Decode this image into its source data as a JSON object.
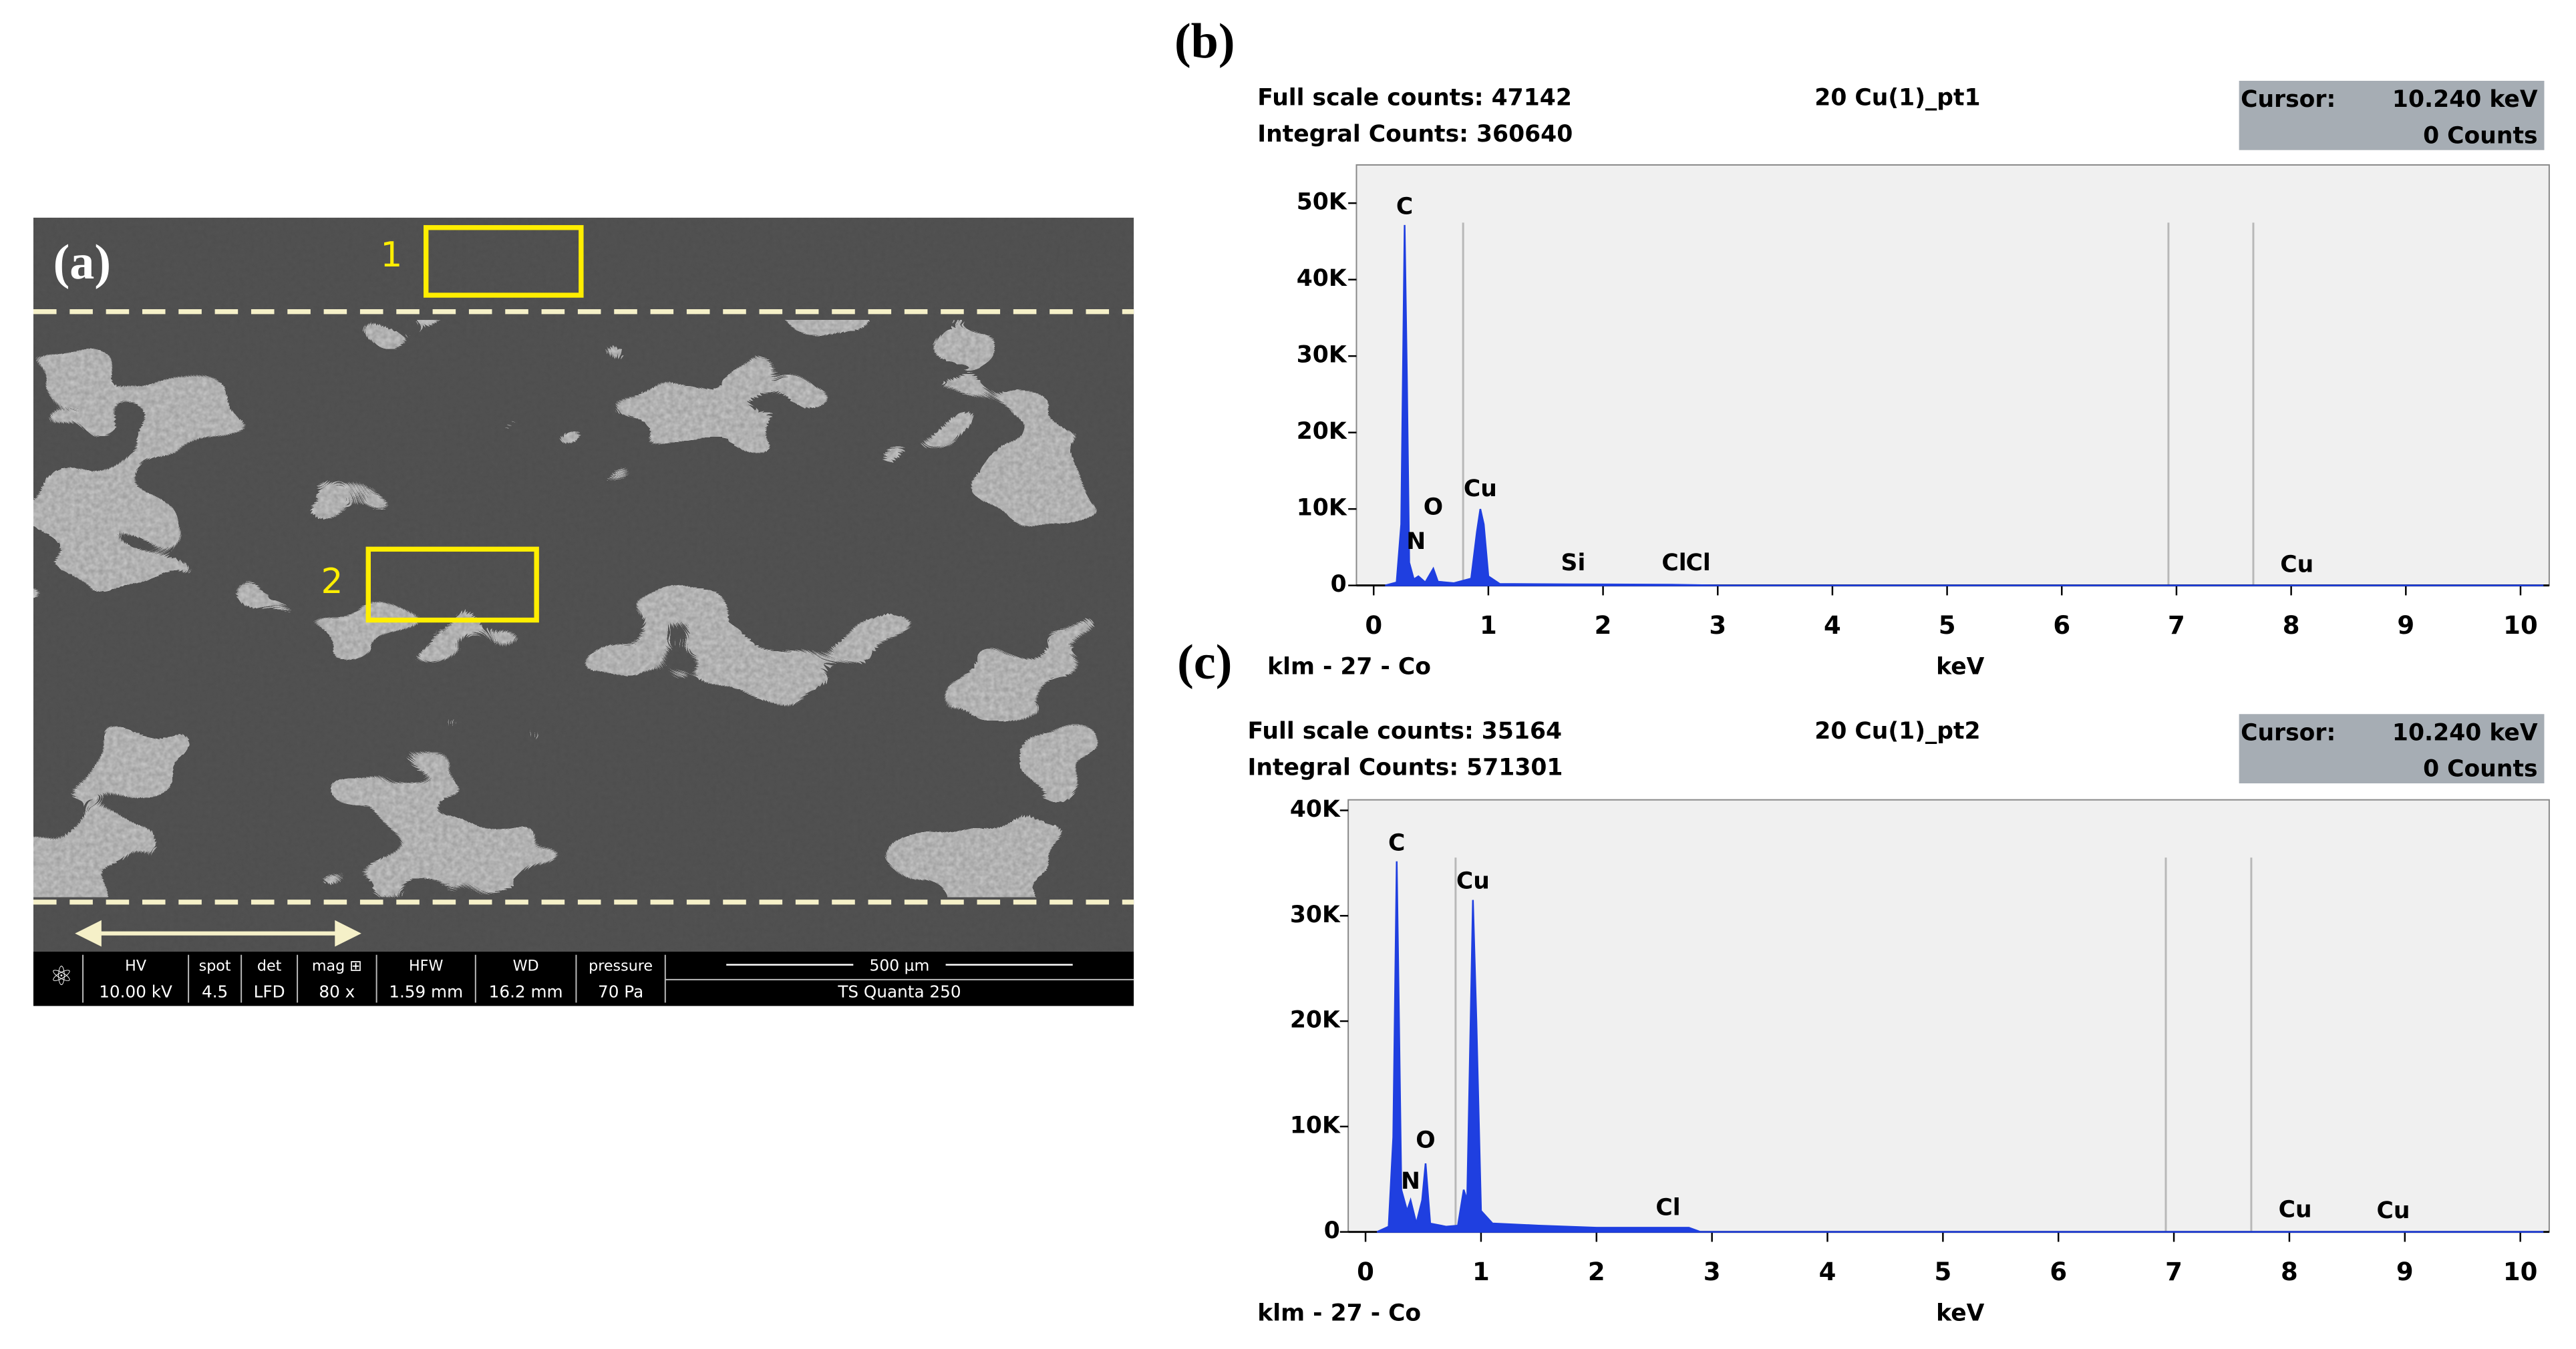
{
  "sem_image": {
    "panel_label": "(a)",
    "regions": [
      "1",
      "2"
    ],
    "info_bar": {
      "headers": [
        "HV",
        "spot",
        "det",
        "mag ⊞",
        "HFW",
        "WD",
        "pressure"
      ],
      "values": [
        "10.00 kV",
        "4.5",
        "LFD",
        "80 x",
        "1.59 mm",
        "16.2 mm",
        "70 Pa"
      ],
      "scale_bar": "500 µm",
      "instrument": "TS Quanta 250"
    }
  },
  "chart_data": [
    {
      "type": "area",
      "panel_label": "(b)",
      "title": "20 Cu(1)_pt1",
      "info": [
        "Full scale counts: 47142",
        "Integral Counts: 360640"
      ],
      "cursor": {
        "label": "Cursor:",
        "energy": "10.240 keV",
        "counts": "0 Counts"
      },
      "footer": "klm - 27 - Co",
      "xlabel": "keV",
      "color": "#1f3fe0",
      "x": [
        0.1,
        0.2,
        0.24,
        0.27,
        0.29,
        0.31,
        0.35,
        0.39,
        0.45,
        0.52,
        0.56,
        0.7,
        0.85,
        0.9,
        0.93,
        0.96,
        1.0,
        1.1,
        1.74,
        2.6,
        3.0,
        10.2
      ],
      "values": [
        0,
        400,
        8000,
        47142,
        27000,
        3000,
        800,
        1200,
        400,
        2200,
        500,
        300,
        900,
        7000,
        10000,
        8000,
        1200,
        200,
        150,
        100,
        0,
        0
      ],
      "xlim": [
        -0.15,
        10.25
      ],
      "ylim": [
        0,
        55000
      ],
      "xticks": [
        0,
        1,
        2,
        3,
        4,
        5,
        6,
        7,
        8,
        9,
        10
      ],
      "yticks": [
        0,
        {
          "value": 10000,
          "label": "10K"
        },
        {
          "value": 20000,
          "label": "20K"
        },
        {
          "value": 30000,
          "label": "30K"
        },
        {
          "value": 40000,
          "label": "40K"
        },
        {
          "value": 50000,
          "label": "50K"
        }
      ],
      "markers": [
        0.78,
        6.93,
        7.67
      ],
      "annotations": [
        {
          "text": "C",
          "x": 0.27,
          "y": 49400
        },
        {
          "text": "N",
          "x": 0.37,
          "y": 5600
        },
        {
          "text": "O",
          "x": 0.52,
          "y": 10100
        },
        {
          "text": "Cu",
          "x": 0.93,
          "y": 12500
        },
        {
          "text": "Si",
          "x": 1.74,
          "y": 2800
        },
        {
          "text": "Cl",
          "x": 2.62,
          "y": 2800
        },
        {
          "text": "Cl",
          "x": 2.83,
          "y": 2800
        },
        {
          "text": "Cu",
          "x": 8.05,
          "y": 2600
        }
      ]
    },
    {
      "type": "area",
      "panel_label": "(c)",
      "title": "20 Cu(1)_pt2",
      "info": [
        "Full scale counts: 35164",
        "Integral Counts: 571301"
      ],
      "cursor": {
        "label": "Cursor:",
        "energy": "10.240 keV",
        "counts": "0 Counts"
      },
      "footer": "klm - 27 - Co",
      "xlabel": "keV",
      "color": "#1f3fe0",
      "x": [
        0.1,
        0.2,
        0.24,
        0.27,
        0.29,
        0.31,
        0.36,
        0.39,
        0.44,
        0.49,
        0.52,
        0.56,
        0.7,
        0.8,
        0.85,
        0.88,
        0.93,
        0.96,
        1.0,
        1.1,
        1.5,
        2.0,
        2.8,
        2.9,
        10.2
      ],
      "values": [
        0,
        500,
        9000,
        35164,
        20000,
        4000,
        2000,
        3000,
        800,
        3000,
        6500,
        800,
        500,
        600,
        4000,
        3000,
        31500,
        20000,
        2000,
        800,
        600,
        400,
        400,
        0,
        0
      ],
      "xlim": [
        -0.15,
        10.25
      ],
      "ylim": [
        0,
        41000
      ],
      "xticks": [
        0,
        1,
        2,
        3,
        4,
        5,
        6,
        7,
        8,
        9,
        10
      ],
      "yticks": [
        0,
        {
          "value": 10000,
          "label": "10K"
        },
        {
          "value": 20000,
          "label": "20K"
        },
        {
          "value": 30000,
          "label": "30K"
        },
        {
          "value": 40000,
          "label": "40K"
        }
      ],
      "markers": [
        0.78,
        6.93,
        7.67
      ],
      "annotations": [
        {
          "text": "C",
          "x": 0.27,
          "y": 36800
        },
        {
          "text": "N",
          "x": 0.39,
          "y": 4700
        },
        {
          "text": "O",
          "x": 0.52,
          "y": 8600
        },
        {
          "text": "Cu",
          "x": 0.93,
          "y": 33200
        },
        {
          "text": "Cl",
          "x": 2.62,
          "y": 2200
        },
        {
          "text": "Cu",
          "x": 8.05,
          "y": 2000
        },
        {
          "text": "Cu",
          "x": 8.9,
          "y": 1900
        }
      ]
    }
  ]
}
